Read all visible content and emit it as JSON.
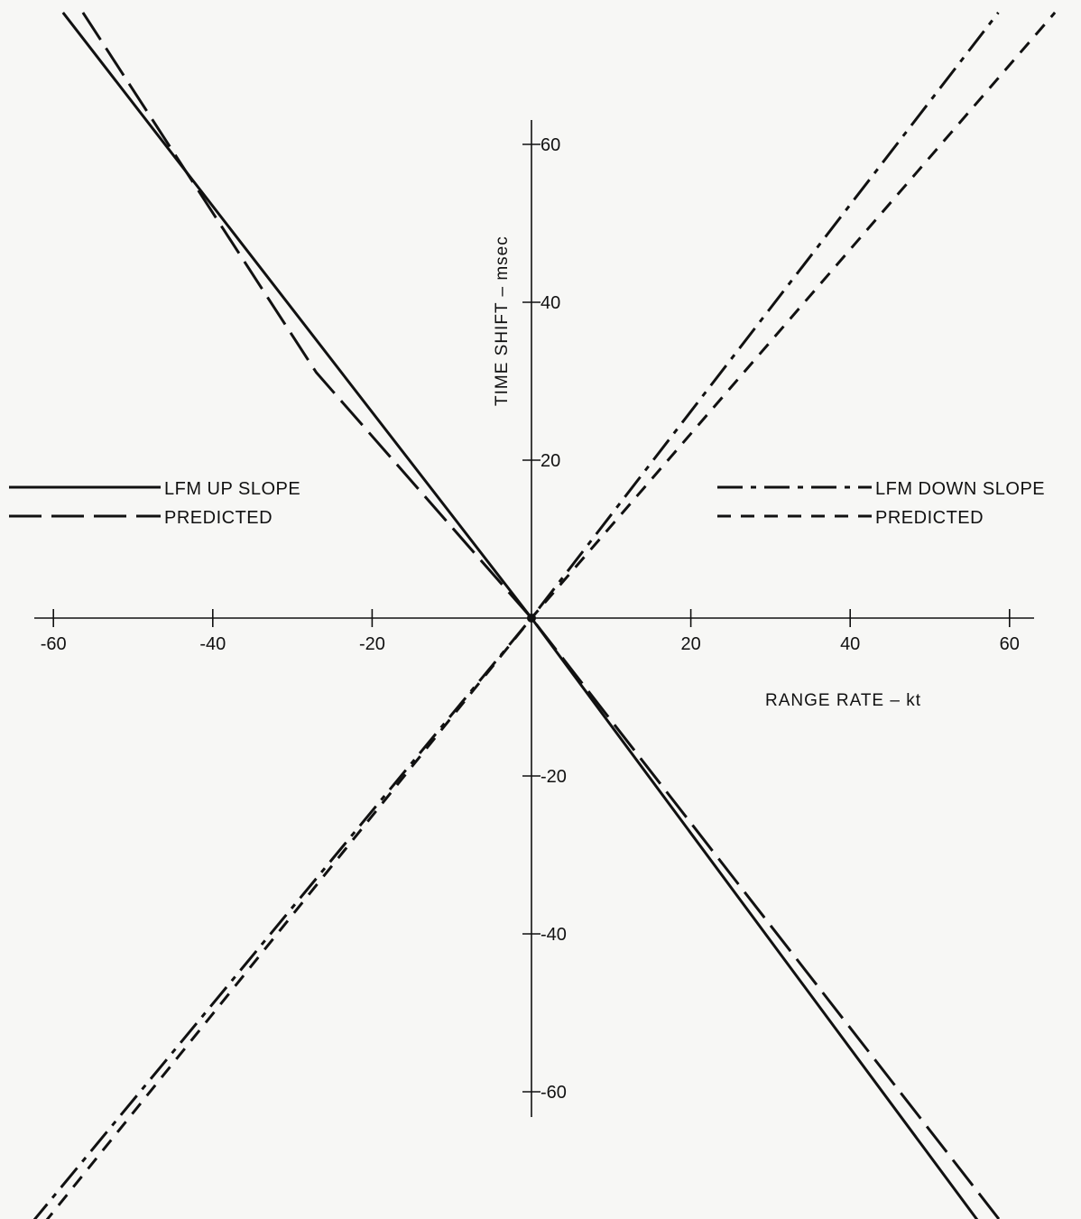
{
  "chart_data": {
    "type": "line",
    "title": "",
    "xlabel": "RANGE RATE – kt",
    "ylabel": "TIME SHIFT – msec",
    "xlim": [
      -60,
      60
    ],
    "ylim": [
      -60,
      60
    ],
    "x_ticks": [
      -60,
      -40,
      -20,
      20,
      40,
      60
    ],
    "y_ticks": [
      60,
      40,
      20,
      -20,
      -40,
      -60
    ],
    "grid": false,
    "series": [
      {
        "name": "LFM UP SLOPE",
        "group": "up",
        "style": "solid",
        "x": [
          -58.8,
          0,
          56.3
        ],
        "y": [
          76.7,
          0,
          -76.7
        ]
      },
      {
        "name": "PREDICTED",
        "group": "up",
        "style": "longdash",
        "x": [
          -56.3,
          -27,
          0,
          59.1
        ],
        "y": [
          76.7,
          31.1,
          0,
          -76.7
        ]
      },
      {
        "name": "LFM DOWN SLOPE",
        "group": "down",
        "style": "dashdot",
        "x": [
          -62.8,
          0,
          58.6
        ],
        "y": [
          -76.7,
          0,
          76.7
        ]
      },
      {
        "name": "PREDICTED",
        "group": "down",
        "style": "shortdash",
        "x": [
          -61.2,
          0,
          65.7
        ],
        "y": [
          -76.7,
          0,
          76.7
        ]
      }
    ],
    "legend_left": {
      "position": "left-middle",
      "entries": [
        {
          "label": "LFM UP SLOPE",
          "style": "solid"
        },
        {
          "label": "PREDICTED",
          "style": "longdash"
        }
      ]
    },
    "legend_right": {
      "position": "right-middle",
      "entries": [
        {
          "label": "LFM DOWN SLOPE",
          "style": "dashdot"
        },
        {
          "label": "PREDICTED",
          "style": "shortdash"
        }
      ]
    }
  }
}
